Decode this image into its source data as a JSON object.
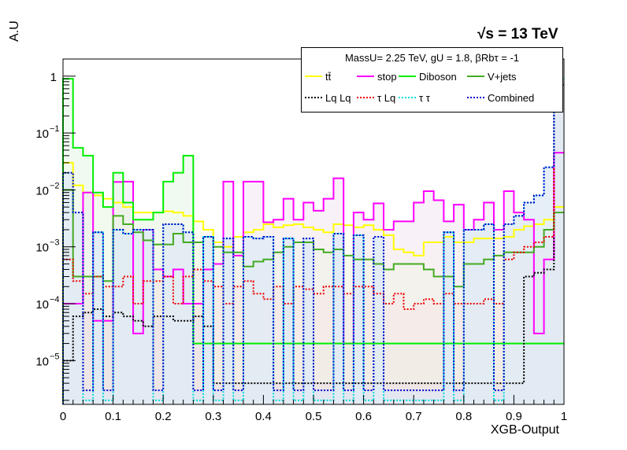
{
  "header": {
    "energy_label": "√s = 13 TeV",
    "legend_header": "MassU= 2.25 TeV, gU = 1.8, βRbτ = -1"
  },
  "chart_data": {
    "type": "histogram",
    "xlabel": "XGB-Output",
    "ylabel": "A.U",
    "xlim": [
      0,
      1
    ],
    "ylim": [
      1.7e-06,
      2.0
    ],
    "yscale": "log",
    "grid": false,
    "legend_placement": "top-right",
    "x_ticks": [
      "0",
      "0.1",
      "0.2",
      "0.3",
      "0.4",
      "0.5",
      "0.6",
      "0.7",
      "0.8",
      "0.9",
      "1"
    ],
    "y_ticks": [
      {
        "value": 1e-05,
        "base": "10",
        "exp": "−5"
      },
      {
        "value": 0.0001,
        "base": "10",
        "exp": "−4"
      },
      {
        "value": 0.001,
        "base": "10",
        "exp": "−3"
      },
      {
        "value": 0.01,
        "base": "10",
        "exp": "−2"
      },
      {
        "value": 0.1,
        "base": "10",
        "exp": "−1"
      },
      {
        "value": 1,
        "base": "1",
        "exp": ""
      }
    ],
    "bins": 50,
    "series": [
      {
        "name": "tt̄",
        "color": "#ffff00",
        "style": "solid",
        "fill": "#fdfdf0",
        "values": [
          0.03,
          0.012,
          0.009,
          0.008,
          0.007,
          0.006,
          0.005,
          0.004,
          0.004,
          0.004,
          0.0042,
          0.004,
          0.0035,
          0.0028,
          0.002,
          0.0012,
          0.001,
          0.0015,
          0.0018,
          0.002,
          0.0025,
          0.0022,
          0.0024,
          0.0025,
          0.0022,
          0.002,
          0.0018,
          0.0025,
          0.0024,
          0.0022,
          0.0024,
          0.002,
          0.0016,
          0.0009,
          0.0008,
          0.0007,
          0.0012,
          0.0012,
          0.0015,
          0.0012,
          0.0012,
          0.0014,
          0.0014,
          0.0014,
          0.0015,
          0.002,
          0.0023,
          0.0025,
          0.003,
          0.005
        ]
      },
      {
        "name": "stop",
        "color": "#ff00ff",
        "style": "solid",
        "fill": "#f3e6f3",
        "values": [
          0.0001,
          0.0001,
          0.009,
          5e-05,
          5e-05,
          0.0138,
          0.014,
          3e-05,
          0.002,
          0.0004,
          0.0003,
          0.0004,
          0.0001,
          0.0001,
          0.0004,
          0.0005,
          0.014,
          0.0007,
          0.014,
          0.014,
          0.0027,
          0.003,
          0.007,
          0.003,
          0.006,
          0.0043,
          0.007,
          0.016,
          2e-05,
          0.004,
          0.003,
          0.0058,
          0.002,
          0.0028,
          0.0028,
          0.006,
          0.0095,
          0.0066,
          0.0028,
          0.0055,
          0.002,
          0.003,
          0.006,
          0.002,
          0.0095,
          0.004,
          0.003,
          3e-05,
          0.0006,
          0.045
        ]
      },
      {
        "name": "Diboson",
        "color": "#00ee00",
        "style": "solid",
        "fill": "#e6f6e6",
        "values": [
          0.9,
          0.055,
          0.04,
          0.009,
          0.005,
          0.02,
          0.006,
          0.003,
          0.003,
          0.004,
          0.014,
          0.02,
          0.04,
          2e-05,
          2e-05,
          2e-05,
          2e-05,
          2e-05,
          2e-05,
          2e-05,
          2e-05,
          2e-05,
          2e-05,
          2e-05,
          2e-05,
          2e-05,
          2e-05,
          2e-05,
          2e-05,
          2e-05,
          2e-05,
          2e-05,
          2e-05,
          2e-05,
          2e-05,
          2e-05,
          2e-05,
          2e-05,
          2e-05,
          2e-05,
          2e-05,
          2e-05,
          2e-05,
          2e-05,
          2e-05,
          2e-05,
          2e-05,
          2e-05,
          2e-05,
          2e-05
        ]
      },
      {
        "name": "V+jets",
        "color": "#44aa22",
        "style": "solid",
        "fill": "#eef3e6",
        "values": [
          0.01,
          0.0003,
          0.0003,
          0.0003,
          0.00025,
          0.0035,
          0.0025,
          0.0018,
          0.0013,
          0.0011,
          0.0011,
          0.0017,
          0.0012,
          0.0012,
          0.0015,
          0.001,
          0.0008,
          0.0008,
          0.00045,
          0.00055,
          0.0006,
          0.0008,
          0.001,
          0.0012,
          0.0012,
          0.0009,
          0.0008,
          0.0009,
          0.0007,
          0.0006,
          0.0006,
          0.0005,
          0.0004,
          0.0005,
          0.0005,
          0.0005,
          0.0004,
          0.0003,
          0.0003,
          0.0002,
          0.0005,
          0.0005,
          0.0006,
          0.0007,
          0.0008,
          0.0008,
          0.0008,
          0.001,
          0.002,
          0.004
        ]
      },
      {
        "name": "Lq Lq",
        "color": "#000000",
        "style": "dotted",
        "fill": "#dcdce6",
        "values": [
          1e-05,
          6e-05,
          7e-05,
          8e-05,
          6e-05,
          7e-05,
          6e-05,
          5e-05,
          4e-05,
          6e-05,
          6e-05,
          5e-05,
          5e-05,
          6e-05,
          4e-05,
          4e-06,
          4e-06,
          4e-06,
          4e-06,
          4e-06,
          4e-06,
          4e-06,
          4e-06,
          4e-06,
          4e-06,
          4e-06,
          4e-06,
          4e-06,
          4e-06,
          4e-06,
          4e-06,
          4e-06,
          4e-06,
          4e-06,
          4e-06,
          4e-06,
          4e-06,
          4e-06,
          4e-06,
          4e-06,
          4e-06,
          4e-06,
          4e-06,
          4e-06,
          4e-06,
          4e-06,
          0.0003,
          0.00035,
          0.0004,
          0.7
        ]
      },
      {
        "name": "τ Lq",
        "color": "#ee0000",
        "style": "dotted",
        "fill": "#f6e6e6",
        "values": [
          0.0006,
          0.00025,
          0.00015,
          0.0003,
          0.0002,
          0.0002,
          0.0003,
          0.0001,
          0.00025,
          0.00025,
          0.0003,
          0.0001,
          0.0003,
          0.0004,
          0.00025,
          0.0002,
          0.0001,
          0.0002,
          0.00025,
          0.00015,
          0.00012,
          0.0002,
          0.0001,
          0.0002,
          0.00018,
          0.00015,
          0.0002,
          0.0002,
          0.00015,
          0.0002,
          0.0002,
          0.00015,
          0.0001,
          0.00015,
          8e-05,
          0.0001,
          0.00012,
          0.0001,
          0.00015,
          0.0001,
          0.0001,
          0.0001,
          0.00012,
          0.0001,
          0.0006,
          0.0008,
          0.001,
          0.0012,
          0.0015,
          0.98
        ]
      },
      {
        "name": "τ τ",
        "color": "#00dddd",
        "style": "dotted",
        "fill": "#e6f3f6",
        "values": [
          0.02,
          0.004,
          2e-06,
          0.0018,
          2e-06,
          0.002,
          0.0017,
          0.002,
          0.002,
          2e-06,
          0.0025,
          0.0025,
          0.0018,
          2e-06,
          0.0015,
          2e-06,
          0.0014,
          2e-06,
          0.0015,
          0.0014,
          0.0015,
          2e-06,
          0.0014,
          2e-06,
          0.0014,
          2e-06,
          2e-06,
          0.0017,
          2e-06,
          0.0016,
          2e-06,
          0.0015,
          2e-06,
          2e-06,
          2e-06,
          2e-06,
          2e-06,
          2e-06,
          0.0018,
          2e-06,
          0.002,
          0.002,
          0.0025,
          2e-06,
          0.0025,
          0.0035,
          0.006,
          0.008,
          0.025,
          0.9
        ]
      },
      {
        "name": "Combined",
        "color": "#0000cc",
        "style": "dotted",
        "fill": "#dde8f6",
        "values": [
          0.02,
          0.004,
          3e-06,
          0.0018,
          3e-06,
          0.002,
          0.0017,
          0.002,
          0.002,
          3e-06,
          0.0025,
          0.0025,
          0.0018,
          3e-06,
          0.0015,
          3e-06,
          0.0014,
          3e-06,
          0.0015,
          0.0014,
          0.0015,
          3e-06,
          0.0014,
          3e-06,
          0.0014,
          3e-06,
          3e-06,
          0.0017,
          3e-06,
          0.0016,
          3e-06,
          0.0015,
          3e-06,
          3e-06,
          3e-06,
          3e-06,
          3e-06,
          3e-06,
          0.0018,
          3e-06,
          0.002,
          0.002,
          0.0025,
          3e-06,
          0.0025,
          0.0035,
          0.006,
          0.008,
          0.025,
          0.8
        ]
      }
    ]
  }
}
